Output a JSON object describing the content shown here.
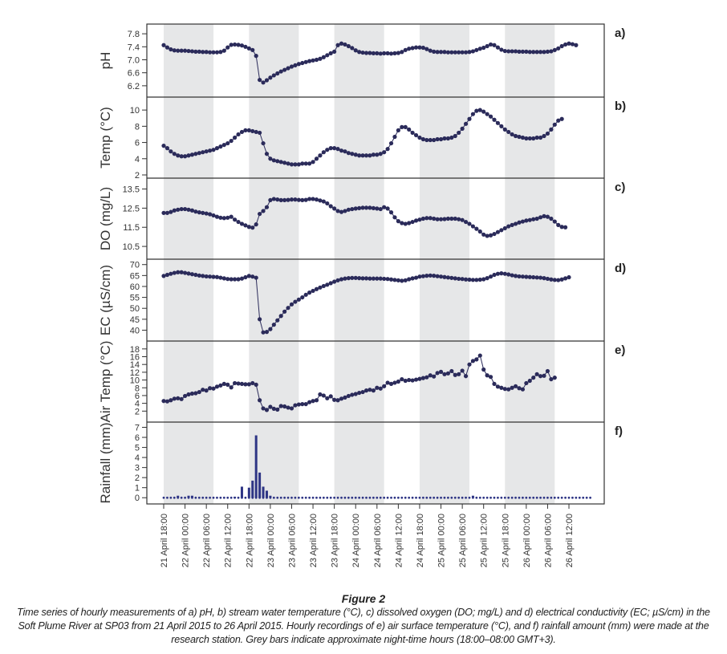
{
  "figure": {
    "title": "Figure 2",
    "caption": "Time series of hourly measurements of a) pH, b) stream water temperature (°C), c) dissolved oxygen (DO; mg/L) and d) electrical conductivity (EC; µS/cm) in the Soft Plume River at SP03 from 21 April 2015 to 26 April 2015. Hourly recordings of e) air surface temperature (°C), and f) rainfall amount (mm) were made at the research station. Grey bars indicate approximate night-time hours (18:00–08:00 GMT+3)."
  },
  "colors": {
    "series": "#2b2b5a",
    "night_band": "#e6e7e8",
    "axis": "#333333",
    "rain": "#2e3585"
  },
  "chart_data": {
    "type": "line",
    "x_unit": "hours since 21 April 18:00",
    "x_range": [
      0,
      120
    ],
    "x_ticks": [
      {
        "hour": 0,
        "label": "21 April 18:00"
      },
      {
        "hour": 6,
        "label": "22 April 00:00"
      },
      {
        "hour": 12,
        "label": "22 April 06:00"
      },
      {
        "hour": 18,
        "label": "22 April 12:00"
      },
      {
        "hour": 24,
        "label": "22 April 18:00"
      },
      {
        "hour": 30,
        "label": "23 April 00:00"
      },
      {
        "hour": 36,
        "label": "23 April 06:00"
      },
      {
        "hour": 42,
        "label": "23 April 12:00"
      },
      {
        "hour": 48,
        "label": "23 April 18:00"
      },
      {
        "hour": 54,
        "label": "24 April 00:00"
      },
      {
        "hour": 60,
        "label": "24 April 06:00"
      },
      {
        "hour": 66,
        "label": "24 April 12:00"
      },
      {
        "hour": 72,
        "label": "24 April 18:00"
      },
      {
        "hour": 78,
        "label": "25 April 00:00"
      },
      {
        "hour": 84,
        "label": "25 April 06:00"
      },
      {
        "hour": 90,
        "label": "25 April 12:00"
      },
      {
        "hour": 96,
        "label": "25 April 18:00"
      },
      {
        "hour": 102,
        "label": "26 April 00:00"
      },
      {
        "hour": 108,
        "label": "26 April 06:00"
      },
      {
        "hour": 114,
        "label": "26 April 12:00"
      }
    ],
    "night_bands": [
      [
        0,
        14
      ],
      [
        24,
        38
      ],
      [
        48,
        62
      ],
      [
        72,
        86
      ],
      [
        96,
        110
      ]
    ],
    "panels": [
      {
        "id": "a",
        "label": "a)",
        "ylabel": "pH",
        "type": "line",
        "ylim": [
          5.95,
          8.0
        ],
        "yticks": [
          6.2,
          6.6,
          7.0,
          7.4,
          7.8
        ],
        "ytick_labels": [
          "6.2",
          "6.6",
          "7.0",
          "7.4",
          "7.8"
        ],
        "values": [
          7.45,
          7.38,
          7.32,
          7.29,
          7.28,
          7.28,
          7.28,
          7.27,
          7.26,
          7.25,
          7.25,
          7.24,
          7.24,
          7.23,
          7.23,
          7.23,
          7.24,
          7.28,
          7.38,
          7.46,
          7.47,
          7.46,
          7.44,
          7.4,
          7.35,
          7.3,
          7.12,
          6.38,
          6.3,
          6.37,
          6.45,
          6.52,
          6.58,
          6.64,
          6.69,
          6.74,
          6.79,
          6.83,
          6.87,
          6.9,
          6.93,
          6.96,
          6.98,
          7.0,
          7.03,
          7.08,
          7.14,
          7.2,
          7.25,
          7.45,
          7.5,
          7.47,
          7.42,
          7.36,
          7.29,
          7.24,
          7.22,
          7.21,
          7.21,
          7.2,
          7.2,
          7.19,
          7.2,
          7.2,
          7.19,
          7.2,
          7.21,
          7.24,
          7.3,
          7.34,
          7.36,
          7.38,
          7.38,
          7.37,
          7.33,
          7.28,
          7.25,
          7.24,
          7.24,
          7.24,
          7.23,
          7.23,
          7.23,
          7.23,
          7.23,
          7.23,
          7.24,
          7.26,
          7.3,
          7.34,
          7.37,
          7.42,
          7.47,
          7.45,
          7.38,
          7.31,
          7.27,
          7.26,
          7.26,
          7.26,
          7.25,
          7.25,
          7.25,
          7.24,
          7.24,
          7.24,
          7.24,
          7.24,
          7.25,
          7.26,
          7.3,
          7.35,
          7.42,
          7.47,
          7.5,
          7.48,
          7.45
        ]
      },
      {
        "id": "b",
        "label": "b)",
        "ylabel": "Temp (°C)",
        "type": "line",
        "ylim": [
          2,
          11.2
        ],
        "yticks": [
          2,
          4,
          6,
          8,
          10
        ],
        "ytick_labels": [
          "2",
          "4",
          "6",
          "8",
          "10"
        ],
        "values": [
          5.6,
          5.3,
          4.9,
          4.6,
          4.4,
          4.3,
          4.3,
          4.4,
          4.5,
          4.6,
          4.7,
          4.8,
          4.9,
          5.0,
          5.1,
          5.3,
          5.5,
          5.7,
          5.9,
          6.2,
          6.6,
          7.0,
          7.3,
          7.5,
          7.5,
          7.4,
          7.3,
          7.2,
          5.9,
          4.6,
          4.0,
          3.8,
          3.7,
          3.6,
          3.5,
          3.4,
          3.3,
          3.3,
          3.3,
          3.4,
          3.4,
          3.4,
          3.6,
          4.0,
          4.4,
          4.8,
          5.1,
          5.3,
          5.3,
          5.2,
          5.0,
          4.9,
          4.7,
          4.6,
          4.5,
          4.4,
          4.4,
          4.4,
          4.4,
          4.5,
          4.5,
          4.6,
          4.8,
          5.2,
          5.9,
          6.7,
          7.5,
          7.9,
          7.9,
          7.6,
          7.2,
          6.9,
          6.6,
          6.4,
          6.3,
          6.3,
          6.3,
          6.4,
          6.4,
          6.5,
          6.5,
          6.6,
          6.8,
          7.2,
          7.7,
          8.3,
          8.9,
          9.5,
          9.9,
          10.0,
          9.8,
          9.5,
          9.2,
          8.8,
          8.4,
          8.0,
          7.6,
          7.3,
          7.0,
          6.8,
          6.7,
          6.6,
          6.5,
          6.5,
          6.5,
          6.6,
          6.6,
          6.8,
          7.1,
          7.6,
          8.2,
          8.7,
          8.9
        ]
      },
      {
        "id": "c",
        "label": "c)",
        "ylabel": "DO (mg/L)",
        "type": "line",
        "ylim": [
          10.0,
          13.9
        ],
        "yticks": [
          10.5,
          11.5,
          12.5,
          13.5
        ],
        "ytick_labels": [
          "10.5",
          "11.5",
          "12.5",
          "13.5"
        ],
        "values": [
          12.25,
          12.25,
          12.3,
          12.38,
          12.42,
          12.45,
          12.45,
          12.42,
          12.38,
          12.32,
          12.28,
          12.25,
          12.22,
          12.18,
          12.12,
          12.05,
          12.0,
          11.98,
          12.0,
          12.05,
          11.9,
          11.78,
          11.68,
          11.6,
          11.52,
          11.48,
          11.65,
          12.2,
          12.35,
          12.55,
          12.92,
          12.98,
          12.95,
          12.92,
          12.92,
          12.93,
          12.95,
          12.95,
          12.93,
          12.92,
          12.93,
          12.98,
          12.98,
          12.95,
          12.9,
          12.85,
          12.75,
          12.6,
          12.48,
          12.35,
          12.3,
          12.35,
          12.42,
          12.45,
          12.48,
          12.5,
          12.52,
          12.52,
          12.52,
          12.5,
          12.48,
          12.45,
          12.55,
          12.48,
          12.28,
          12.02,
          11.82,
          11.72,
          11.68,
          11.72,
          11.78,
          11.85,
          11.9,
          11.95,
          11.98,
          11.98,
          11.95,
          11.92,
          11.92,
          11.93,
          11.95,
          11.95,
          11.95,
          11.92,
          11.88,
          11.78,
          11.68,
          11.55,
          11.42,
          11.28,
          11.12,
          11.05,
          11.08,
          11.15,
          11.25,
          11.35,
          11.45,
          11.55,
          11.62,
          11.68,
          11.75,
          11.8,
          11.85,
          11.88,
          11.92,
          11.95,
          12.02,
          12.08,
          12.05,
          11.95,
          11.8,
          11.62,
          11.52,
          11.5
        ]
      },
      {
        "id": "d",
        "label": "d)",
        "ylabel": "EC (µS/cm)",
        "type": "line",
        "ylim": [
          36.5,
          71.0
        ],
        "yticks": [
          40,
          45,
          50,
          55,
          60,
          65,
          70
        ],
        "ytick_labels": [
          "40",
          "45",
          "50",
          "55",
          "60",
          "65",
          "70"
        ],
        "values": [
          64.8,
          65.3,
          65.8,
          66.2,
          66.5,
          66.5,
          66.2,
          65.9,
          65.6,
          65.3,
          65.0,
          64.8,
          64.6,
          64.5,
          64.4,
          64.3,
          64.0,
          63.7,
          63.4,
          63.3,
          63.3,
          63.3,
          63.6,
          64.2,
          64.8,
          64.5,
          64.0,
          45.0,
          39.0,
          39.2,
          40.5,
          42.5,
          44.5,
          46.5,
          48.5,
          50.2,
          51.8,
          53.0,
          54.0,
          55.0,
          56.2,
          57.2,
          58.0,
          58.8,
          59.5,
          60.2,
          60.8,
          61.5,
          62.2,
          62.8,
          63.3,
          63.6,
          63.8,
          63.9,
          63.9,
          63.8,
          63.7,
          63.7,
          63.6,
          63.6,
          63.6,
          63.6,
          63.5,
          63.4,
          63.2,
          63.0,
          62.8,
          62.6,
          62.8,
          63.3,
          63.7,
          64.0,
          64.5,
          64.7,
          64.9,
          65.0,
          64.9,
          64.7,
          64.5,
          64.3,
          64.1,
          63.9,
          63.7,
          63.5,
          63.4,
          63.2,
          63.1,
          63.0,
          63.0,
          63.1,
          63.3,
          63.8,
          64.5,
          65.3,
          65.8,
          66.0,
          65.8,
          65.5,
          65.1,
          64.8,
          64.6,
          64.5,
          64.4,
          64.3,
          64.2,
          64.1,
          64.0,
          63.8,
          63.5,
          63.2,
          63.0,
          62.9,
          63.2,
          63.7,
          64.2
        ]
      },
      {
        "id": "e",
        "label": "e)",
        "ylabel": "Air Temp (°C)",
        "type": "line",
        "ylim": [
          0,
          19.2
        ],
        "yticks": [
          2,
          4,
          6,
          8,
          10,
          12,
          14,
          16,
          18
        ],
        "ytick_labels": [
          "2",
          "4",
          "6",
          "8",
          "10",
          "12",
          "14",
          "16",
          "18"
        ],
        "values": [
          4.6,
          4.5,
          4.8,
          5.2,
          5.3,
          5.1,
          5.9,
          6.3,
          6.5,
          6.6,
          6.9,
          7.5,
          7.3,
          7.9,
          7.8,
          8.3,
          8.6,
          9.0,
          8.8,
          8.1,
          9.2,
          9.1,
          9.0,
          8.9,
          8.9,
          9.2,
          8.8,
          4.8,
          2.7,
          2.3,
          3.1,
          2.6,
          2.4,
          3.3,
          3.2,
          2.9,
          2.7,
          3.5,
          3.7,
          3.8,
          3.8,
          4.3,
          4.6,
          4.8,
          6.3,
          6.0,
          5.3,
          5.8,
          4.9,
          4.8,
          5.2,
          5.5,
          5.9,
          6.2,
          6.4,
          6.7,
          6.9,
          7.3,
          7.5,
          7.3,
          8.0,
          7.8,
          8.4,
          9.3,
          9.0,
          9.3,
          9.6,
          10.2,
          9.8,
          10.0,
          9.9,
          10.1,
          10.3,
          10.5,
          10.7,
          11.2,
          10.9,
          11.8,
          12.1,
          11.5,
          11.7,
          12.3,
          11.3,
          11.5,
          12.4,
          11.0,
          14.0,
          14.9,
          15.3,
          16.3,
          12.7,
          11.2,
          10.8,
          9.0,
          8.3,
          8.0,
          7.7,
          7.6,
          8.0,
          8.4,
          7.9,
          7.6,
          9.2,
          9.8,
          10.6,
          11.5,
          11.0,
          11.1,
          12.3,
          10.2,
          10.6
        ]
      },
      {
        "id": "f",
        "label": "f)",
        "ylabel": "Rainfall (mm)",
        "type": "bar",
        "ylim": [
          -0.3,
          7.2
        ],
        "yticks": [
          0,
          1,
          2,
          3,
          4,
          5,
          6,
          7
        ],
        "ytick_labels": [
          "0",
          "1",
          "2",
          "3",
          "4",
          "5",
          "6",
          "7"
        ],
        "values": [
          0,
          0,
          0,
          0,
          0.2,
          0,
          0,
          0.2,
          0.2,
          0,
          0,
          0,
          0,
          0,
          0,
          0,
          0,
          0,
          0,
          0,
          0.1,
          0,
          1.1,
          0,
          1.0,
          1.7,
          6.2,
          2.5,
          1.1,
          0.7,
          0.2,
          0,
          0,
          0,
          0,
          0,
          0,
          0,
          0,
          0,
          0,
          0,
          0,
          0,
          0,
          0,
          0,
          0,
          0,
          0,
          0,
          0,
          0,
          0,
          0,
          0,
          0,
          0,
          0,
          0,
          0,
          0,
          0,
          0,
          0,
          0,
          0,
          0,
          0,
          0,
          0,
          0,
          0,
          0,
          0,
          0,
          0,
          0,
          0,
          0,
          0,
          0,
          0,
          0,
          0,
          0,
          0,
          0.2,
          0,
          0,
          0,
          0,
          0,
          0,
          0,
          0,
          0,
          0,
          0,
          0,
          0,
          0,
          0,
          0,
          0,
          0,
          0,
          0,
          0,
          0,
          0,
          0,
          0,
          0,
          0,
          0,
          0,
          0,
          0,
          0,
          0
        ]
      }
    ]
  }
}
